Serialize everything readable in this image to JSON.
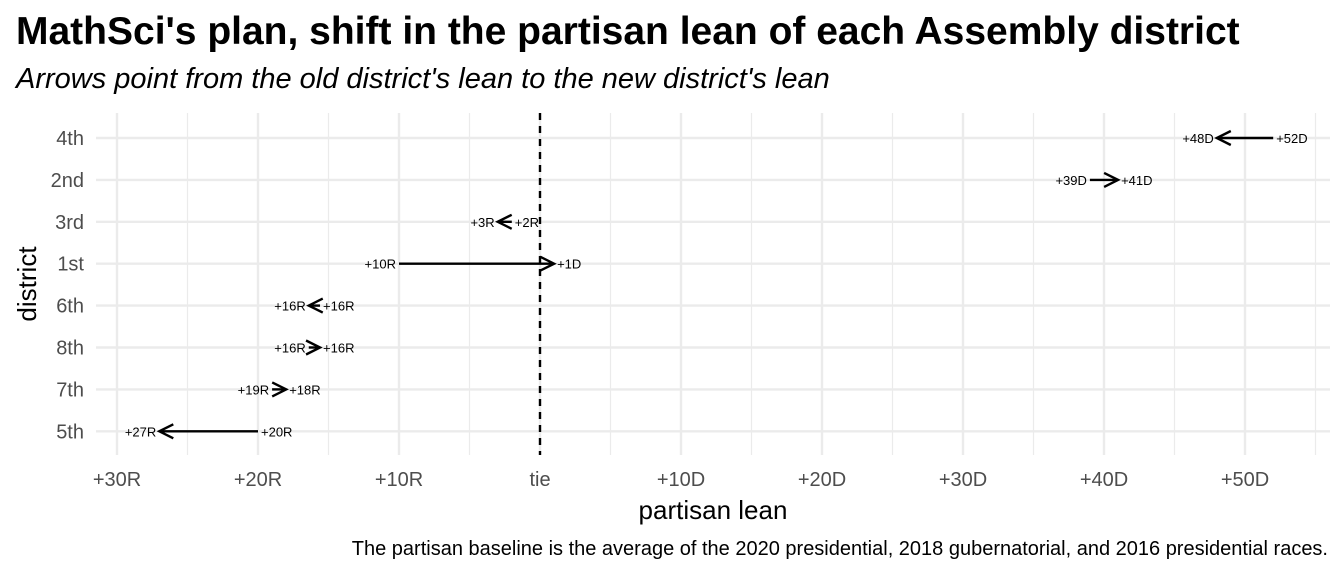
{
  "title": "MathSci's plan, shift in the partisan lean of each Assembly district",
  "subtitle": "Arrows point from the old district's lean to the new district's lean",
  "caption": "The partisan baseline is the average of the 2020 presidential, 2018 gubernatorial, and 2016 presidential races.",
  "colors": {
    "grid": "#ebebeb",
    "axis_text": "#4d4d4d",
    "ink": "#000000"
  },
  "chart_data": {
    "type": "arrow",
    "title": "MathSci's plan, shift in the partisan lean of each Assembly district",
    "subtitle": "Arrows point from the old district's lean to the new district's lean",
    "xlabel": "partisan lean",
    "ylabel": "district",
    "xlim": [
      -32,
      56
    ],
    "x_sign_convention": "negative = Republican lean, positive = Democratic lean",
    "x_ticks": [
      -30,
      -20,
      -10,
      0,
      10,
      20,
      30,
      40,
      50
    ],
    "x_tick_labels": [
      "+30R",
      "+20R",
      "+10R",
      "tie",
      "+10D",
      "+20D",
      "+30D",
      "+40D",
      "+50D"
    ],
    "reference_line": {
      "x": 0,
      "style": "dashed"
    },
    "grid": true,
    "categories": [
      "4th",
      "2nd",
      "3rd",
      "1st",
      "6th",
      "8th",
      "7th",
      "5th"
    ],
    "series": [
      {
        "district": "4th",
        "old": 52,
        "new": 48,
        "old_label": "+52D",
        "new_label": "+48D"
      },
      {
        "district": "2nd",
        "old": 39,
        "new": 41,
        "old_label": "+39D",
        "new_label": "+41D"
      },
      {
        "district": "3rd",
        "old": -2,
        "new": -3,
        "old_label": "+2R",
        "new_label": "+3R"
      },
      {
        "district": "1st",
        "old": -10,
        "new": 1,
        "old_label": "+10R",
        "new_label": "+1D"
      },
      {
        "district": "6th",
        "old": -15.6,
        "new": -16.4,
        "old_label": "+16R",
        "new_label": "+16R"
      },
      {
        "district": "8th",
        "old": -16.4,
        "new": -15.6,
        "old_label": "+16R",
        "new_label": "+16R"
      },
      {
        "district": "7th",
        "old": -19,
        "new": -18,
        "old_label": "+19R",
        "new_label": "+18R"
      },
      {
        "district": "5th",
        "old": -20,
        "new": -27,
        "old_label": "+20R",
        "new_label": "+27R"
      }
    ]
  }
}
